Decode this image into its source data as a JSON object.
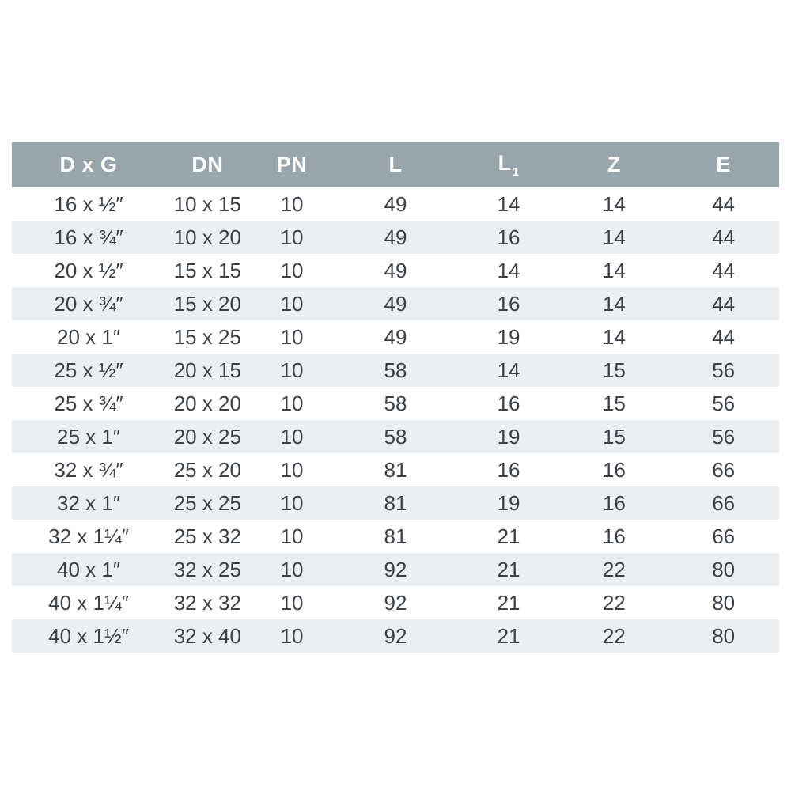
{
  "colors": {
    "header_bg": "#98a5ac",
    "header_text": "#ffffff",
    "stripe_bg": "#ebeff1",
    "body_text": "#3b4046",
    "page_bg": "#ffffff"
  },
  "table": {
    "columns": [
      {
        "key": "dxg",
        "label": "D x G",
        "sub": ""
      },
      {
        "key": "dn",
        "label": "DN",
        "sub": ""
      },
      {
        "key": "pn",
        "label": "PN",
        "sub": ""
      },
      {
        "key": "l",
        "label": "L",
        "sub": ""
      },
      {
        "key": "l1",
        "label": "L",
        "sub": "1"
      },
      {
        "key": "z",
        "label": "Z",
        "sub": ""
      },
      {
        "key": "e",
        "label": "E",
        "sub": ""
      }
    ],
    "rows": [
      [
        "16 x ½″",
        "10 x 15",
        "10",
        "49",
        "14",
        "14",
        "44"
      ],
      [
        "16 x ¾″",
        "10 x 20",
        "10",
        "49",
        "16",
        "14",
        "44"
      ],
      [
        "20 x ½″",
        "15 x 15",
        "10",
        "49",
        "14",
        "14",
        "44"
      ],
      [
        "20 x ¾″",
        "15 x 20",
        "10",
        "49",
        "16",
        "14",
        "44"
      ],
      [
        "20 x 1″",
        "15 x 25",
        "10",
        "49",
        "19",
        "14",
        "44"
      ],
      [
        "25 x ½″",
        "20 x 15",
        "10",
        "58",
        "14",
        "15",
        "56"
      ],
      [
        "25 x ¾″",
        "20 x 20",
        "10",
        "58",
        "16",
        "15",
        "56"
      ],
      [
        "25 x 1″",
        "20 x 25",
        "10",
        "58",
        "19",
        "15",
        "56"
      ],
      [
        "32 x ¾″",
        "25 x 20",
        "10",
        "81",
        "16",
        "16",
        "66"
      ],
      [
        "32 x 1″",
        "25 x 25",
        "10",
        "81",
        "19",
        "16",
        "66"
      ],
      [
        "32 x 1¼″",
        "25 x 32",
        "10",
        "81",
        "21",
        "16",
        "66"
      ],
      [
        "40 x 1″",
        "32 x 25",
        "10",
        "92",
        "21",
        "22",
        "80"
      ],
      [
        "40 x 1¼″",
        "32 x 32",
        "10",
        "92",
        "21",
        "22",
        "80"
      ],
      [
        "40 x 1½″",
        "32 x 40",
        "10",
        "92",
        "21",
        "22",
        "80"
      ]
    ]
  }
}
